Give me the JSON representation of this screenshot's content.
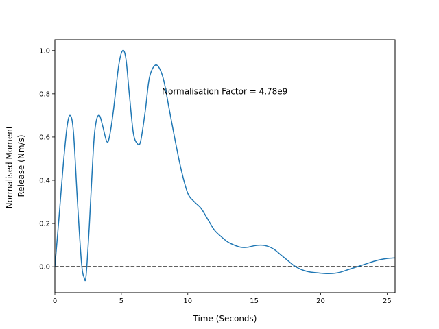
{
  "chart_data": {
    "type": "line",
    "xlabel": "Time (Seconds)",
    "ylabel_lines": [
      "Normalised Moment",
      "Release (Nm/s)"
    ],
    "xlim": [
      0,
      25.6
    ],
    "ylim": [
      -0.12,
      1.05
    ],
    "xticks": [
      0,
      5,
      10,
      15,
      20,
      25
    ],
    "yticks": [
      0.0,
      0.2,
      0.4,
      0.6,
      0.8,
      1.0
    ],
    "xtick_labels": [
      "0",
      "5",
      "10",
      "15",
      "20",
      "25"
    ],
    "ytick_labels": [
      "0.0",
      "0.2",
      "0.4",
      "0.6",
      "0.8",
      "1.0"
    ],
    "annotation": {
      "text": "Normalisation Factor = 4.78e9",
      "x": 8.0,
      "y": 0.81
    },
    "reference_line": {
      "y": 0.0,
      "style": "dashed",
      "color": "#000000"
    },
    "grid": false,
    "series": [
      {
        "color": "#1f77b4",
        "x": [
          0,
          0.3,
          0.6,
          0.9,
          1.15,
          1.4,
          1.7,
          2.0,
          2.2,
          2.35,
          2.6,
          2.9,
          3.1,
          3.35,
          3.6,
          3.9,
          4.1,
          4.4,
          4.8,
          5.1,
          5.35,
          5.6,
          5.9,
          6.2,
          6.45,
          6.8,
          7.1,
          7.5,
          7.85,
          8.2,
          8.6,
          9.0,
          9.5,
          10.0,
          10.5,
          11.0,
          11.5,
          12.0,
          12.5,
          13.0,
          13.5,
          14.0,
          14.5,
          15.0,
          15.5,
          16.0,
          16.5,
          17.0,
          17.5,
          18.0,
          18.5,
          19.0,
          19.5,
          20.0,
          20.5,
          21.0,
          21.5,
          22.0,
          22.5,
          23.0,
          23.5,
          24.0,
          24.5,
          25.0,
          25.6
        ],
        "y": [
          0.0,
          0.22,
          0.45,
          0.64,
          0.7,
          0.62,
          0.3,
          0.02,
          -0.05,
          -0.04,
          0.2,
          0.55,
          0.67,
          0.7,
          0.65,
          0.58,
          0.6,
          0.72,
          0.93,
          1.0,
          0.96,
          0.8,
          0.62,
          0.57,
          0.58,
          0.72,
          0.87,
          0.93,
          0.92,
          0.86,
          0.73,
          0.6,
          0.45,
          0.34,
          0.3,
          0.27,
          0.22,
          0.17,
          0.14,
          0.115,
          0.1,
          0.09,
          0.09,
          0.097,
          0.1,
          0.095,
          0.08,
          0.055,
          0.03,
          0.005,
          -0.012,
          -0.022,
          -0.027,
          -0.03,
          -0.032,
          -0.031,
          -0.025,
          -0.015,
          -0.005,
          0.005,
          0.015,
          0.025,
          0.033,
          0.038,
          0.041
        ]
      }
    ]
  }
}
